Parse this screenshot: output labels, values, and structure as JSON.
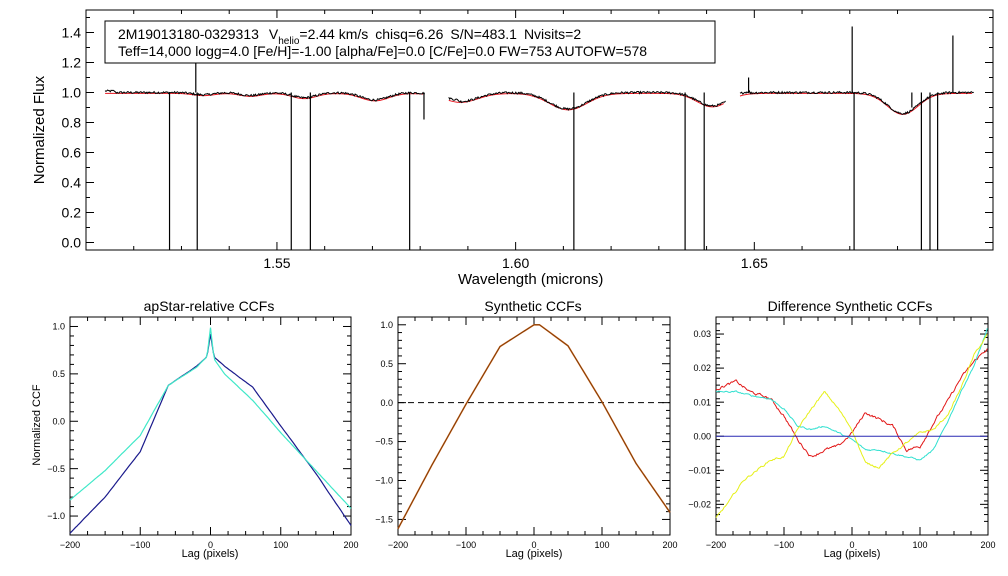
{
  "header": {
    "star_id": "2M19013180-0329313",
    "vhelio_prefix": "V",
    "vhelio_sub": "helio",
    "vhelio_value": "=2.44 km/s",
    "chisq": "chisq=6.26",
    "snr": "S/N=483.1",
    "nvisits": "Nvisits=2",
    "params": "Teff=14,000 logg=4.0 [Fe/H]=-1.00 [alpha/Fe]=0.0 [C/Fe]=0.0 FW=753 AUTOFW=578"
  },
  "colors": {
    "observed": "#000000",
    "model": "#e8141e",
    "ccf_dark": "#1a1a8c",
    "ccf_cyan": "#3fe8c8",
    "synth_orange": "#d2691e",
    "synth_dark": "#7a3b0a",
    "diff_red": "#e21818",
    "diff_cyan": "#30e0d0",
    "diff_yellow": "#e6f01a",
    "diff_blue": "#2828b4",
    "zero_line": "#000000"
  },
  "chart_data": [
    {
      "type": "line",
      "name": "spectrum",
      "title": "",
      "xlabel": "Wavelength (microns)",
      "ylabel": "Normalized Flux",
      "xlim": [
        1.51,
        1.7
      ],
      "ylim": [
        -0.05,
        1.55
      ],
      "xticks": [
        "1.55",
        "1.60",
        "1.65"
      ],
      "yticks": [
        "0.0",
        "0.2",
        "0.4",
        "0.6",
        "0.8",
        "1.0",
        "1.2",
        "1.4"
      ],
      "chips": [
        [
          1.514,
          1.581
        ],
        [
          1.586,
          1.644
        ],
        [
          1.647,
          1.696
        ]
      ],
      "broad_lines": [
        {
          "center": 1.5346,
          "depth": 0.015,
          "width": 0.003
        },
        {
          "center": 1.5445,
          "depth": 0.02,
          "width": 0.003
        },
        {
          "center": 1.5557,
          "depth": 0.035,
          "width": 0.0035
        },
        {
          "center": 1.5705,
          "depth": 0.05,
          "width": 0.004
        },
        {
          "center": 1.5885,
          "depth": 0.06,
          "width": 0.005
        },
        {
          "center": 1.611,
          "depth": 0.11,
          "width": 0.0055
        },
        {
          "center": 1.6412,
          "depth": 0.09,
          "width": 0.0045
        },
        {
          "center": 1.6811,
          "depth": 0.14,
          "width": 0.0045
        }
      ],
      "spikes": [
        {
          "x": 1.5275,
          "y": -0.05
        },
        {
          "x": 1.533,
          "y": 1.32
        },
        {
          "x": 1.5333,
          "y": -0.05
        },
        {
          "x": 1.553,
          "y": -0.05
        },
        {
          "x": 1.557,
          "y": -0.05
        },
        {
          "x": 1.5778,
          "y": -0.05
        },
        {
          "x": 1.5808,
          "y": 0.82
        },
        {
          "x": 1.6122,
          "y": -0.05
        },
        {
          "x": 1.6355,
          "y": -0.05
        },
        {
          "x": 1.6395,
          "y": -0.05
        },
        {
          "x": 1.6705,
          "y": 1.44
        },
        {
          "x": 1.6709,
          "y": -0.05
        },
        {
          "x": 1.685,
          "y": -0.05
        },
        {
          "x": 1.6868,
          "y": -0.05
        },
        {
          "x": 1.6884,
          "y": -0.05
        },
        {
          "x": 1.6916,
          "y": 1.38
        },
        {
          "x": 1.6488,
          "y": 1.1
        },
        {
          "x": 1.683,
          "y": 0.9
        }
      ]
    },
    {
      "type": "line",
      "name": "apstar-ccf",
      "title": "apStar-relative CCFs",
      "xlabel": "Lag (pixels)",
      "ylabel": "Normalized CCF",
      "xlim": [
        -200,
        200
      ],
      "ylim": [
        -1.2,
        1.1
      ],
      "xticks": [
        "−200",
        "−100",
        "0",
        "100",
        "200"
      ],
      "yticks": [
        "−1.0",
        "−0.5",
        "0.0",
        "0.5",
        "1.0"
      ],
      "series": [
        {
          "name": "dark",
          "x": [
            -200,
            -150,
            -100,
            -60,
            -20,
            -5,
            0,
            5,
            20,
            60,
            100,
            150,
            200
          ],
          "y": [
            -1.18,
            -0.8,
            -0.32,
            0.38,
            0.58,
            0.68,
            0.92,
            0.68,
            0.58,
            0.36,
            -0.05,
            -0.55,
            -1.1
          ]
        },
        {
          "name": "cyan",
          "x": [
            -200,
            -150,
            -100,
            -60,
            -20,
            -5,
            0,
            5,
            20,
            60,
            100,
            150,
            200
          ],
          "y": [
            -0.83,
            -0.52,
            -0.15,
            0.38,
            0.57,
            0.68,
            0.99,
            0.66,
            0.5,
            0.22,
            -0.12,
            -0.52,
            -0.92
          ]
        }
      ]
    },
    {
      "type": "line",
      "name": "synthetic-ccf",
      "title": "Synthetic CCFs",
      "xlabel": "Lag (pixels)",
      "ylabel": "",
      "xlim": [
        -200,
        200
      ],
      "ylim": [
        -1.7,
        1.1
      ],
      "xticks": [
        "−200",
        "−100",
        "0",
        "100",
        "200"
      ],
      "yticks": [
        "−1.5",
        "−1.0",
        "−0.5",
        "0.0",
        "0.5",
        "1.0"
      ],
      "zero_line": 0.0,
      "series": [
        {
          "name": "orange",
          "x": [
            -200,
            -150,
            -100,
            -50,
            0,
            8,
            50,
            100,
            150,
            200
          ],
          "y": [
            -1.62,
            -0.8,
            -0.02,
            0.72,
            1.0,
            1.0,
            0.73,
            0.01,
            -0.78,
            -1.41
          ]
        }
      ]
    },
    {
      "type": "line",
      "name": "difference-ccf",
      "title": "Difference Synthetic CCFs",
      "xlabel": "Lag (pixels)",
      "ylabel": "",
      "xlim": [
        -200,
        200
      ],
      "ylim": [
        -0.029,
        0.035
      ],
      "xticks": [
        "−200",
        "−100",
        "0",
        "100",
        "200"
      ],
      "yticks": [
        "−0.02",
        "−0.01",
        "0.00",
        "0.01",
        "0.02",
        "0.03"
      ],
      "series": [
        {
          "name": "red",
          "x": [
            -200,
            -170,
            -150,
            -120,
            -100,
            -80,
            -60,
            -40,
            -20,
            0,
            20,
            40,
            60,
            80,
            100,
            120,
            140,
            160,
            180,
            200
          ],
          "y": [
            0.014,
            0.016,
            0.013,
            0.011,
            0.006,
            -0.001,
            -0.006,
            -0.004,
            -0.003,
            0.001,
            0.007,
            0.005,
            0.003,
            -0.004,
            -0.003,
            0.004,
            0.01,
            0.017,
            0.022,
            0.026
          ]
        },
        {
          "name": "cyan",
          "x": [
            -200,
            -170,
            -150,
            -120,
            -100,
            -80,
            -60,
            -40,
            -20,
            0,
            20,
            40,
            60,
            80,
            100,
            120,
            140,
            160,
            180,
            200
          ],
          "y": [
            0.013,
            0.013,
            0.012,
            0.011,
            0.008,
            0.003,
            0.002,
            0.003,
            0.001,
            -0.001,
            -0.004,
            -0.004,
            -0.005,
            -0.006,
            -0.007,
            -0.004,
            0.004,
            0.013,
            0.021,
            0.032
          ]
        },
        {
          "name": "yellow",
          "x": [
            -200,
            -180,
            -160,
            -140,
            -120,
            -100,
            -80,
            -60,
            -40,
            -20,
            0,
            20,
            40,
            60,
            80,
            100,
            120,
            140,
            160,
            180,
            200
          ],
          "y": [
            -0.024,
            -0.019,
            -0.013,
            -0.01,
            -0.007,
            -0.006,
            0.002,
            0.008,
            0.013,
            0.008,
            0.002,
            -0.008,
            -0.009,
            -0.005,
            -0.002,
            0.001,
            0.002,
            0.006,
            0.014,
            0.024,
            0.03
          ]
        },
        {
          "name": "blue",
          "x": [
            -200,
            200
          ],
          "y": [
            0.0,
            0.0
          ]
        }
      ]
    }
  ]
}
